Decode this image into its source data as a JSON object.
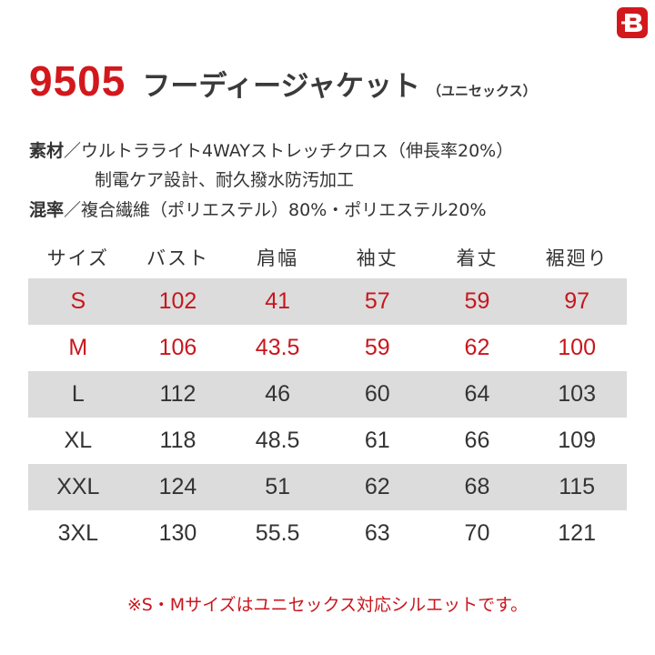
{
  "header": {
    "model": "9505",
    "name": "フーディージャケット",
    "unisex": "（ユニセックス）"
  },
  "specs": {
    "material_label": "素材",
    "material_sep": "／",
    "material_line1": "ウルトラライト4WAYストレッチクロス（伸長率20%）",
    "material_line2": "制電ケア設計、耐久撥水防汚加工",
    "blend_label": "混率",
    "blend_sep": "／",
    "blend_text": "複合繊維（ポリエステル）80%・ポリエステル20%"
  },
  "table": {
    "headers": [
      "サイズ",
      "バスト",
      "肩幅",
      "袖丈",
      "着丈",
      "裾廻り"
    ],
    "rows": [
      [
        "S",
        "102",
        "41",
        "57",
        "59",
        "97"
      ],
      [
        "M",
        "106",
        "43.5",
        "59",
        "62",
        "100"
      ],
      [
        "L",
        "112",
        "46",
        "60",
        "64",
        "103"
      ],
      [
        "XL",
        "118",
        "48.5",
        "61",
        "66",
        "109"
      ],
      [
        "XXL",
        "124",
        "51",
        "62",
        "68",
        "115"
      ],
      [
        "3XL",
        "130",
        "55.5",
        "63",
        "70",
        "121"
      ]
    ]
  },
  "note": "※S・Mサイズはユニセックス対応シルエットです。",
  "colors": {
    "accent_red": "#d2181c",
    "row_shade": "#dcdcdc",
    "text": "#333333"
  },
  "logo": {
    "icon": "brand-b-logo-icon"
  }
}
